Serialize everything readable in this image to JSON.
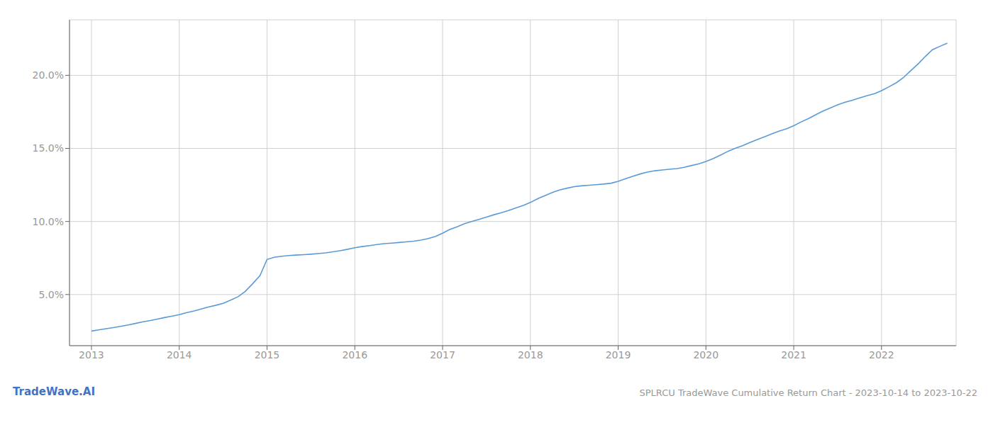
{
  "chart_data": {
    "type": "line",
    "title": "SPLRCU TradeWave Cumulative Return Chart - 2023-10-14 to 2023-10-22",
    "annotations": [
      "TradeWave.AI"
    ],
    "color": "#5b9bd5",
    "grid": true,
    "x": [
      2013.0,
      2013.08,
      2013.17,
      2013.25,
      2013.33,
      2013.42,
      2013.5,
      2013.58,
      2013.67,
      2013.75,
      2013.83,
      2013.92,
      2014.0,
      2014.08,
      2014.17,
      2014.25,
      2014.33,
      2014.42,
      2014.5,
      2014.58,
      2014.67,
      2014.75,
      2014.83,
      2014.92,
      2015.0,
      2015.08,
      2015.17,
      2015.25,
      2015.33,
      2015.42,
      2015.5,
      2015.58,
      2015.67,
      2015.75,
      2015.83,
      2015.92,
      2016.0,
      2016.08,
      2016.17,
      2016.25,
      2016.33,
      2016.42,
      2016.5,
      2016.58,
      2016.67,
      2016.75,
      2016.83,
      2016.92,
      2017.0,
      2017.08,
      2017.17,
      2017.25,
      2017.33,
      2017.42,
      2017.5,
      2017.58,
      2017.67,
      2017.75,
      2017.83,
      2017.92,
      2018.0,
      2018.08,
      2018.17,
      2018.25,
      2018.33,
      2018.42,
      2018.5,
      2018.58,
      2018.67,
      2018.75,
      2018.83,
      2018.92,
      2019.0,
      2019.08,
      2019.17,
      2019.25,
      2019.33,
      2019.42,
      2019.5,
      2019.58,
      2019.67,
      2019.75,
      2019.83,
      2019.92,
      2020.0,
      2020.08,
      2020.17,
      2020.25,
      2020.33,
      2020.42,
      2020.5,
      2020.58,
      2020.67,
      2020.75,
      2020.83,
      2020.92,
      2021.0,
      2021.08,
      2021.17,
      2021.25,
      2021.33,
      2021.42,
      2021.5,
      2021.58,
      2021.67,
      2021.75,
      2021.83,
      2021.92,
      2022.0,
      2022.08,
      2022.17,
      2022.25,
      2022.33,
      2022.42,
      2022.5,
      2022.58,
      2022.67,
      2022.75
    ],
    "values": [
      2.5,
      2.58,
      2.66,
      2.74,
      2.82,
      2.92,
      3.02,
      3.12,
      3.22,
      3.32,
      3.42,
      3.52,
      3.62,
      3.75,
      3.88,
      4.01,
      4.14,
      4.27,
      4.4,
      4.6,
      4.85,
      5.2,
      5.7,
      6.3,
      7.4,
      7.55,
      7.62,
      7.67,
      7.7,
      7.73,
      7.76,
      7.8,
      7.85,
      7.92,
      8.0,
      8.1,
      8.2,
      8.28,
      8.35,
      8.42,
      8.48,
      8.52,
      8.56,
      8.6,
      8.65,
      8.72,
      8.82,
      8.98,
      9.2,
      9.45,
      9.65,
      9.85,
      10.0,
      10.15,
      10.3,
      10.45,
      10.6,
      10.75,
      10.92,
      11.1,
      11.3,
      11.55,
      11.78,
      11.98,
      12.15,
      12.28,
      12.38,
      12.44,
      12.48,
      12.52,
      12.56,
      12.62,
      12.75,
      12.92,
      13.1,
      13.25,
      13.38,
      13.47,
      13.52,
      13.57,
      13.62,
      13.7,
      13.82,
      13.95,
      14.1,
      14.3,
      14.55,
      14.8,
      15.0,
      15.2,
      15.4,
      15.6,
      15.8,
      16.0,
      16.18,
      16.35,
      16.55,
      16.8,
      17.05,
      17.3,
      17.55,
      17.78,
      17.98,
      18.15,
      18.3,
      18.45,
      18.6,
      18.75,
      18.95,
      19.2,
      19.5,
      19.85,
      20.3,
      20.8,
      21.3,
      21.75,
      22.0,
      22.2
    ],
    "xlim": [
      2012.75,
      2022.85
    ],
    "xticks": [
      2013,
      2014,
      2015,
      2016,
      2017,
      2018,
      2019,
      2020,
      2021,
      2022
    ],
    "ylim": [
      1.5,
      23.8
    ],
    "yticks": [
      {
        "value": 5.0,
        "label": "5.0%"
      },
      {
        "value": 10.0,
        "label": "10.0%"
      },
      {
        "value": 15.0,
        "label": "15.0%"
      },
      {
        "value": 20.0,
        "label": "20.0%"
      }
    ]
  }
}
